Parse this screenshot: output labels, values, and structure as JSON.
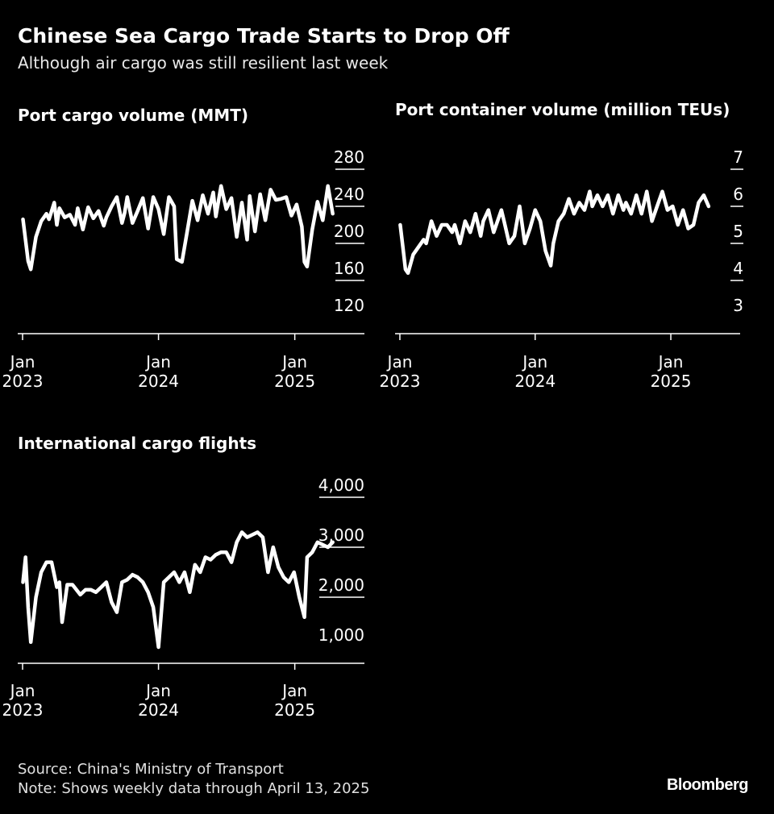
{
  "header": {
    "title": "Chinese Sea Cargo Trade Starts to Drop Off",
    "subtitle": "Although air cargo was still resilient last week"
  },
  "footer": {
    "source": "Source: China's Ministry of Transport",
    "note": "Note: Shows weekly data through April 13, 2025",
    "brand": "Bloomberg"
  },
  "colors": {
    "background": "#000000",
    "line": "#ffffff",
    "axis": "#ffffff"
  },
  "chart_data": [
    {
      "type": "line",
      "title": "Port cargo volume (MMT)",
      "x_ticks": [
        {
          "value": "2023-01",
          "label": [
            "Jan",
            "2023"
          ]
        },
        {
          "value": "2024-01",
          "label": [
            "Jan",
            "2024"
          ]
        },
        {
          "value": "2025-01",
          "label": [
            "Jan",
            "2025"
          ]
        }
      ],
      "xlim": [
        "2022-12-19",
        "2025-07-07"
      ],
      "y_ticks": [
        120,
        160,
        200,
        240,
        280
      ],
      "ylim": [
        120,
        290
      ],
      "grid": false,
      "y_axis_side": "right",
      "series": [
        {
          "x": [
            "2023-01-02",
            "2023-01-16",
            "2023-01-23",
            "2023-02-06",
            "2023-02-20",
            "2023-03-06",
            "2023-03-13",
            "2023-03-27",
            "2023-04-03",
            "2023-04-10",
            "2023-04-24",
            "2023-05-08",
            "2023-05-22",
            "2023-05-29",
            "2023-06-12",
            "2023-06-26",
            "2023-07-10",
            "2023-07-24",
            "2023-08-07",
            "2023-08-14",
            "2023-08-28",
            "2023-09-11",
            "2023-09-25",
            "2023-10-02",
            "2023-10-09",
            "2023-10-23",
            "2023-11-06",
            "2023-11-20",
            "2023-12-04",
            "2023-12-18",
            "2024-01-01",
            "2024-01-15",
            "2024-01-29",
            "2024-02-12",
            "2024-02-19",
            "2024-03-04",
            "2024-03-18",
            "2024-04-01",
            "2024-04-15",
            "2024-04-29",
            "2024-05-13",
            "2024-05-27",
            "2024-06-03",
            "2024-06-17",
            "2024-07-01",
            "2024-07-15",
            "2024-07-29",
            "2024-08-12",
            "2024-08-26",
            "2024-09-02",
            "2024-09-16",
            "2024-09-30",
            "2024-10-14",
            "2024-10-28",
            "2024-11-11",
            "2024-11-25",
            "2024-12-09",
            "2024-12-23",
            "2025-01-06",
            "2025-01-20",
            "2025-01-27",
            "2025-02-03",
            "2025-02-17",
            "2025-03-03",
            "2025-03-17",
            "2025-03-31",
            "2025-04-13"
          ],
          "y": [
            226,
            181,
            172,
            207,
            224,
            232,
            226,
            244,
            220,
            238,
            228,
            231,
            220,
            238,
            215,
            239,
            227,
            235,
            219,
            228,
            240,
            250,
            222,
            233,
            250,
            222,
            235,
            249,
            216,
            250,
            237,
            210,
            250,
            240,
            183,
            180,
            213,
            246,
            225,
            252,
            232,
            255,
            229,
            262,
            237,
            249,
            207,
            244,
            204,
            251,
            213,
            253,
            225,
            258,
            247,
            248,
            250,
            230,
            242,
            218,
            180,
            175,
            215,
            245,
            225,
            262,
            232
          ]
        }
      ]
    },
    {
      "type": "line",
      "title": "Port container volume (million TEUs)",
      "x_ticks": [
        {
          "value": "2023-01",
          "label": [
            "Jan",
            "2023"
          ]
        },
        {
          "value": "2024-01",
          "label": [
            "Jan",
            "2024"
          ]
        },
        {
          "value": "2025-01",
          "label": [
            "Jan",
            "2025"
          ]
        }
      ],
      "xlim": [
        "2022-12-19",
        "2025-07-07"
      ],
      "y_ticks": [
        3,
        4,
        5,
        6,
        7
      ],
      "ylim": [
        3,
        7.2
      ],
      "grid": false,
      "y_axis_side": "right",
      "series": [
        {
          "x": [
            "2023-01-02",
            "2023-01-09",
            "2023-01-16",
            "2023-01-23",
            "2023-02-06",
            "2023-02-20",
            "2023-03-06",
            "2023-03-13",
            "2023-03-27",
            "2023-04-10",
            "2023-04-24",
            "2023-05-08",
            "2023-05-22",
            "2023-05-29",
            "2023-06-12",
            "2023-06-26",
            "2023-07-10",
            "2023-07-24",
            "2023-08-07",
            "2023-08-14",
            "2023-08-28",
            "2023-09-11",
            "2023-09-25",
            "2023-10-02",
            "2023-10-09",
            "2023-10-23",
            "2023-11-06",
            "2023-11-20",
            "2023-12-04",
            "2023-12-18",
            "2024-01-01",
            "2024-01-15",
            "2024-01-29",
            "2024-02-12",
            "2024-02-19",
            "2024-03-04",
            "2024-03-18",
            "2024-04-01",
            "2024-04-15",
            "2024-04-29",
            "2024-05-13",
            "2024-05-27",
            "2024-06-03",
            "2024-06-17",
            "2024-07-01",
            "2024-07-15",
            "2024-07-29",
            "2024-08-12",
            "2024-08-26",
            "2024-09-02",
            "2024-09-16",
            "2024-09-30",
            "2024-10-14",
            "2024-10-28",
            "2024-11-11",
            "2024-11-25",
            "2024-12-09",
            "2024-12-23",
            "2025-01-06",
            "2025-01-20",
            "2025-01-27",
            "2025-02-03",
            "2025-02-17",
            "2025-03-03",
            "2025-03-17",
            "2025-03-31",
            "2025-04-13"
          ],
          "y": [
            5.5,
            4.9,
            4.3,
            4.2,
            4.7,
            4.9,
            5.1,
            5.0,
            5.6,
            5.2,
            5.5,
            5.5,
            5.3,
            5.5,
            5.0,
            5.6,
            5.3,
            5.8,
            5.2,
            5.6,
            5.9,
            5.3,
            5.7,
            5.9,
            5.6,
            5.0,
            5.2,
            6.0,
            5.0,
            5.4,
            5.9,
            5.6,
            4.8,
            4.4,
            5.0,
            5.6,
            5.8,
            6.2,
            5.8,
            6.1,
            5.9,
            6.4,
            6.0,
            6.3,
            6.0,
            6.3,
            5.8,
            6.3,
            5.9,
            6.1,
            5.8,
            6.3,
            5.8,
            6.4,
            5.6,
            6.0,
            6.4,
            5.9,
            6.0,
            5.5,
            5.7,
            5.9,
            5.4,
            5.5,
            6.1,
            6.3,
            6.0
          ]
        }
      ]
    },
    {
      "type": "line",
      "title": "International cargo flights",
      "x_ticks": [
        {
          "value": "2023-01",
          "label": [
            "Jan",
            "2023"
          ]
        },
        {
          "value": "2024-01",
          "label": [
            "Jan",
            "2024"
          ]
        },
        {
          "value": "2025-01",
          "label": [
            "Jan",
            "2025"
          ]
        }
      ],
      "xlim": [
        "2022-12-19",
        "2025-07-07"
      ],
      "y_ticks": [
        "1,000",
        "2,000",
        "3,000",
        "4,000"
      ],
      "ylim": [
        700,
        4300
      ],
      "grid": false,
      "y_axis_side": "right",
      "series": [
        {
          "x": [
            "2023-01-02",
            "2023-01-09",
            "2023-01-16",
            "2023-01-23",
            "2023-02-06",
            "2023-02-20",
            "2023-03-06",
            "2023-03-20",
            "2023-04-03",
            "2023-04-10",
            "2023-04-17",
            "2023-05-01",
            "2023-05-15",
            "2023-06-05",
            "2023-06-19",
            "2023-07-03",
            "2023-07-17",
            "2023-07-31",
            "2023-08-14",
            "2023-08-28",
            "2023-09-11",
            "2023-09-25",
            "2023-10-09",
            "2023-10-23",
            "2023-11-06",
            "2023-11-20",
            "2023-12-04",
            "2023-12-18",
            "2024-01-01",
            "2024-01-15",
            "2024-01-29",
            "2024-02-12",
            "2024-02-26",
            "2024-03-11",
            "2024-03-25",
            "2024-04-08",
            "2024-04-22",
            "2024-05-06",
            "2024-05-20",
            "2024-06-03",
            "2024-06-17",
            "2024-07-01",
            "2024-07-15",
            "2024-07-29",
            "2024-08-12",
            "2024-08-26",
            "2024-09-09",
            "2024-09-23",
            "2024-10-07",
            "2024-10-21",
            "2024-11-04",
            "2024-11-18",
            "2024-12-02",
            "2024-12-16",
            "2024-12-30",
            "2025-01-13",
            "2025-01-27",
            "2025-02-03",
            "2025-02-17",
            "2025-03-03",
            "2025-03-17",
            "2025-03-31",
            "2025-04-13"
          ],
          "y": [
            2300,
            2800,
            1800,
            1100,
            2000,
            2500,
            2700,
            2700,
            2200,
            2300,
            1500,
            2250,
            2250,
            2050,
            2150,
            2150,
            2100,
            2200,
            2300,
            1900,
            1700,
            2300,
            2350,
            2450,
            2400,
            2300,
            2100,
            1800,
            1000,
            2300,
            2400,
            2500,
            2300,
            2500,
            2100,
            2650,
            2500,
            2800,
            2750,
            2850,
            2900,
            2900,
            2700,
            3100,
            3300,
            3200,
            3250,
            3300,
            3200,
            2500,
            3000,
            2600,
            2400,
            2300,
            2500,
            2000,
            1600,
            2800,
            2900,
            3100,
            3050,
            3000,
            3100
          ]
        }
      ]
    }
  ]
}
